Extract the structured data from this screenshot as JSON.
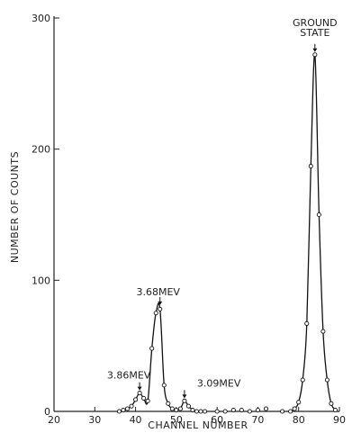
{
  "chart_data": {
    "type": "line",
    "xlabel": "CHANNEL NUMBER",
    "ylabel": "NUMBER OF COUNTS",
    "xlim": [
      20,
      90
    ],
    "ylim": [
      0,
      300
    ],
    "xticks": [
      20,
      30,
      40,
      50,
      60,
      70,
      80,
      90
    ],
    "yticks": [
      0,
      100,
      200,
      300
    ],
    "grid": false,
    "series": [
      {
        "x": [
          36,
          37,
          38,
          39,
          40,
          41,
          42,
          43,
          44,
          45,
          46,
          47,
          48,
          49,
          50,
          51,
          52,
          53,
          54,
          55,
          56,
          57,
          60,
          62,
          64,
          66,
          68,
          70,
          72,
          76,
          78,
          79,
          80,
          81,
          82,
          83,
          84,
          85,
          86,
          87,
          88,
          89
        ],
        "values": [
          0,
          1,
          2,
          4,
          9,
          14,
          10,
          8,
          48,
          75,
          78,
          20,
          6,
          2,
          1,
          2,
          8,
          4,
          1,
          0,
          0,
          0,
          0,
          0,
          1,
          1,
          0,
          1,
          2,
          0,
          0,
          2,
          7,
          24,
          67,
          187,
          272,
          150,
          61,
          24,
          6,
          1
        ]
      }
    ],
    "annotations": [
      {
        "label": "GROUND STATE",
        "x": 84,
        "y": 272
      },
      {
        "label": "3.68MEV",
        "x": 46,
        "y": 79
      },
      {
        "label": "3.86MEV",
        "x": 41,
        "y": 14
      },
      {
        "label": "3.09MEV",
        "x": 52,
        "y": 8
      }
    ]
  }
}
